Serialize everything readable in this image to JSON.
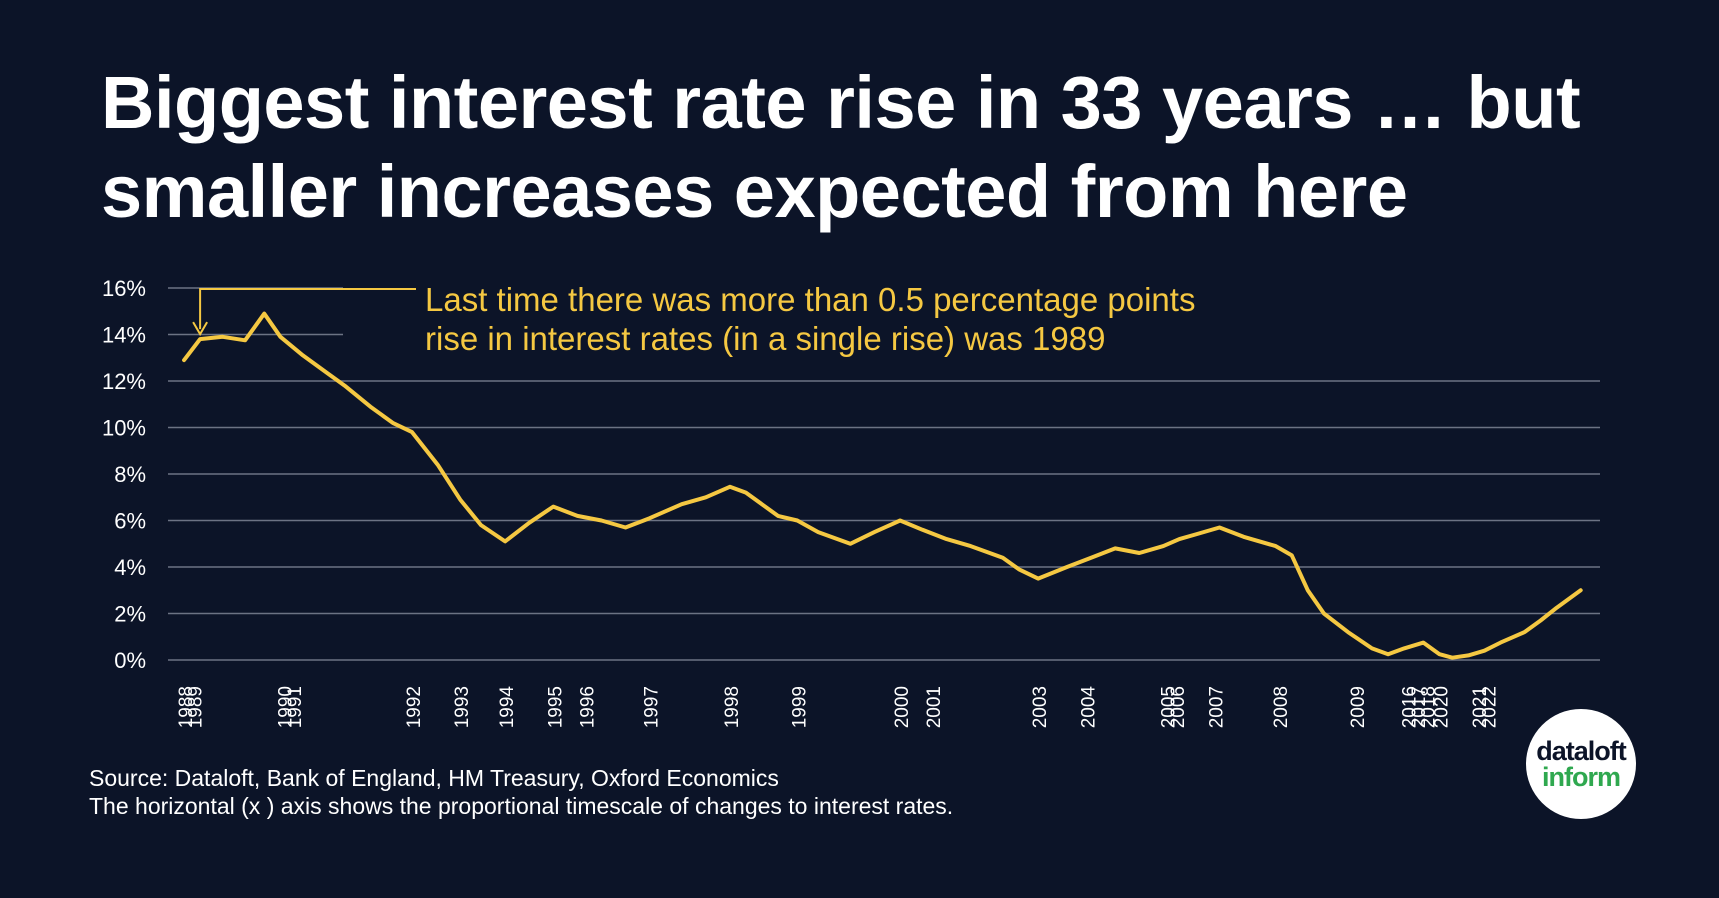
{
  "title": "Biggest interest rate rise in 33 years … but smaller increases expected from here",
  "colors": {
    "background": "#0c1428",
    "line": "#f5c842",
    "grid": "#6c7384",
    "text": "#ffffff",
    "logo_green": "#2fa84f"
  },
  "chart_data": {
    "type": "line",
    "title": "Biggest interest rate rise in 33 years … but smaller increases expected from here",
    "xlabel": "",
    "ylabel": "",
    "ylim": [
      0,
      16
    ],
    "y_ticks": [
      "0%",
      "2%",
      "4%",
      "6%",
      "8%",
      "10%",
      "12%",
      "14%",
      "16%"
    ],
    "x_ticks": [
      "1988",
      "1989",
      "1990",
      "1991",
      "1992",
      "1993",
      "1994",
      "1995",
      "1996",
      "1997",
      "1998",
      "1999",
      "2000",
      "2001",
      "2003",
      "2004",
      "2005",
      "2006",
      "2007",
      "2008",
      "2009",
      "2016",
      "2017",
      "2018",
      "2020",
      "2021",
      "2022"
    ],
    "x_tick_positions": [
      0.0,
      0.6,
      6.2,
      6.8,
      14.2,
      17.2,
      20.0,
      23.0,
      25.0,
      29.0,
      34.0,
      38.2,
      44.6,
      46.6,
      53.2,
      56.2,
      61.2,
      61.8,
      64.2,
      68.2,
      73.0,
      76.2,
      76.8,
      77.4,
      78.2,
      80.6,
      81.2
    ],
    "x_range": [
      -1,
      88.2
    ],
    "series": [
      {
        "name": "Interest rate",
        "x": [
          0,
          1,
          2.4,
          3.8,
          5,
          6,
          7.4,
          9,
          10,
          11.6,
          13,
          14.2,
          15.8,
          17.2,
          18.5,
          20,
          21.5,
          23,
          24.5,
          26,
          27.5,
          29,
          31,
          32.5,
          34,
          35,
          37,
          38.2,
          39.5,
          41.5,
          43,
          44.6,
          46,
          47.5,
          49,
          51,
          52,
          53.2,
          55,
          56.5,
          58,
          59.5,
          61,
          62,
          63,
          64.5,
          66,
          68,
          69,
          70,
          71,
          72.5,
          74,
          75,
          76,
          77.2,
          78.2,
          79,
          80,
          81,
          82,
          83.5,
          84.5,
          85.5,
          87
        ],
        "values": [
          12.9,
          13.8,
          13.9,
          13.75,
          14.9,
          13.9,
          13.1,
          12.3,
          11.8,
          10.9,
          10.2,
          9.8,
          8.4,
          6.9,
          5.8,
          5.1,
          5.9,
          6.6,
          6.2,
          6.0,
          5.7,
          6.1,
          6.7,
          7.0,
          7.45,
          7.2,
          6.2,
          6.0,
          5.5,
          5.0,
          5.5,
          6.0,
          5.6,
          5.2,
          4.9,
          4.4,
          3.9,
          3.5,
          4.0,
          4.4,
          4.8,
          4.6,
          4.9,
          5.2,
          5.4,
          5.7,
          5.3,
          4.9,
          4.5,
          3.0,
          2.0,
          1.2,
          0.5,
          0.25,
          0.5,
          0.75,
          0.25,
          0.1,
          0.2,
          0.4,
          0.75,
          1.2,
          1.7,
          2.25,
          3.0
        ]
      }
    ],
    "annotation": {
      "line1": "Last time there was more than 0.5 percentage points",
      "line2": "rise in interest rates (in a single rise) was 1989"
    }
  },
  "source": {
    "line1": "Source: Dataloft, Bank of England, HM Treasury, Oxford Economics",
    "line2": "The horizontal (x ) axis shows the proportional timescale of changes to interest rates."
  },
  "logo": {
    "line1": "dataloft",
    "line2": "inform"
  }
}
